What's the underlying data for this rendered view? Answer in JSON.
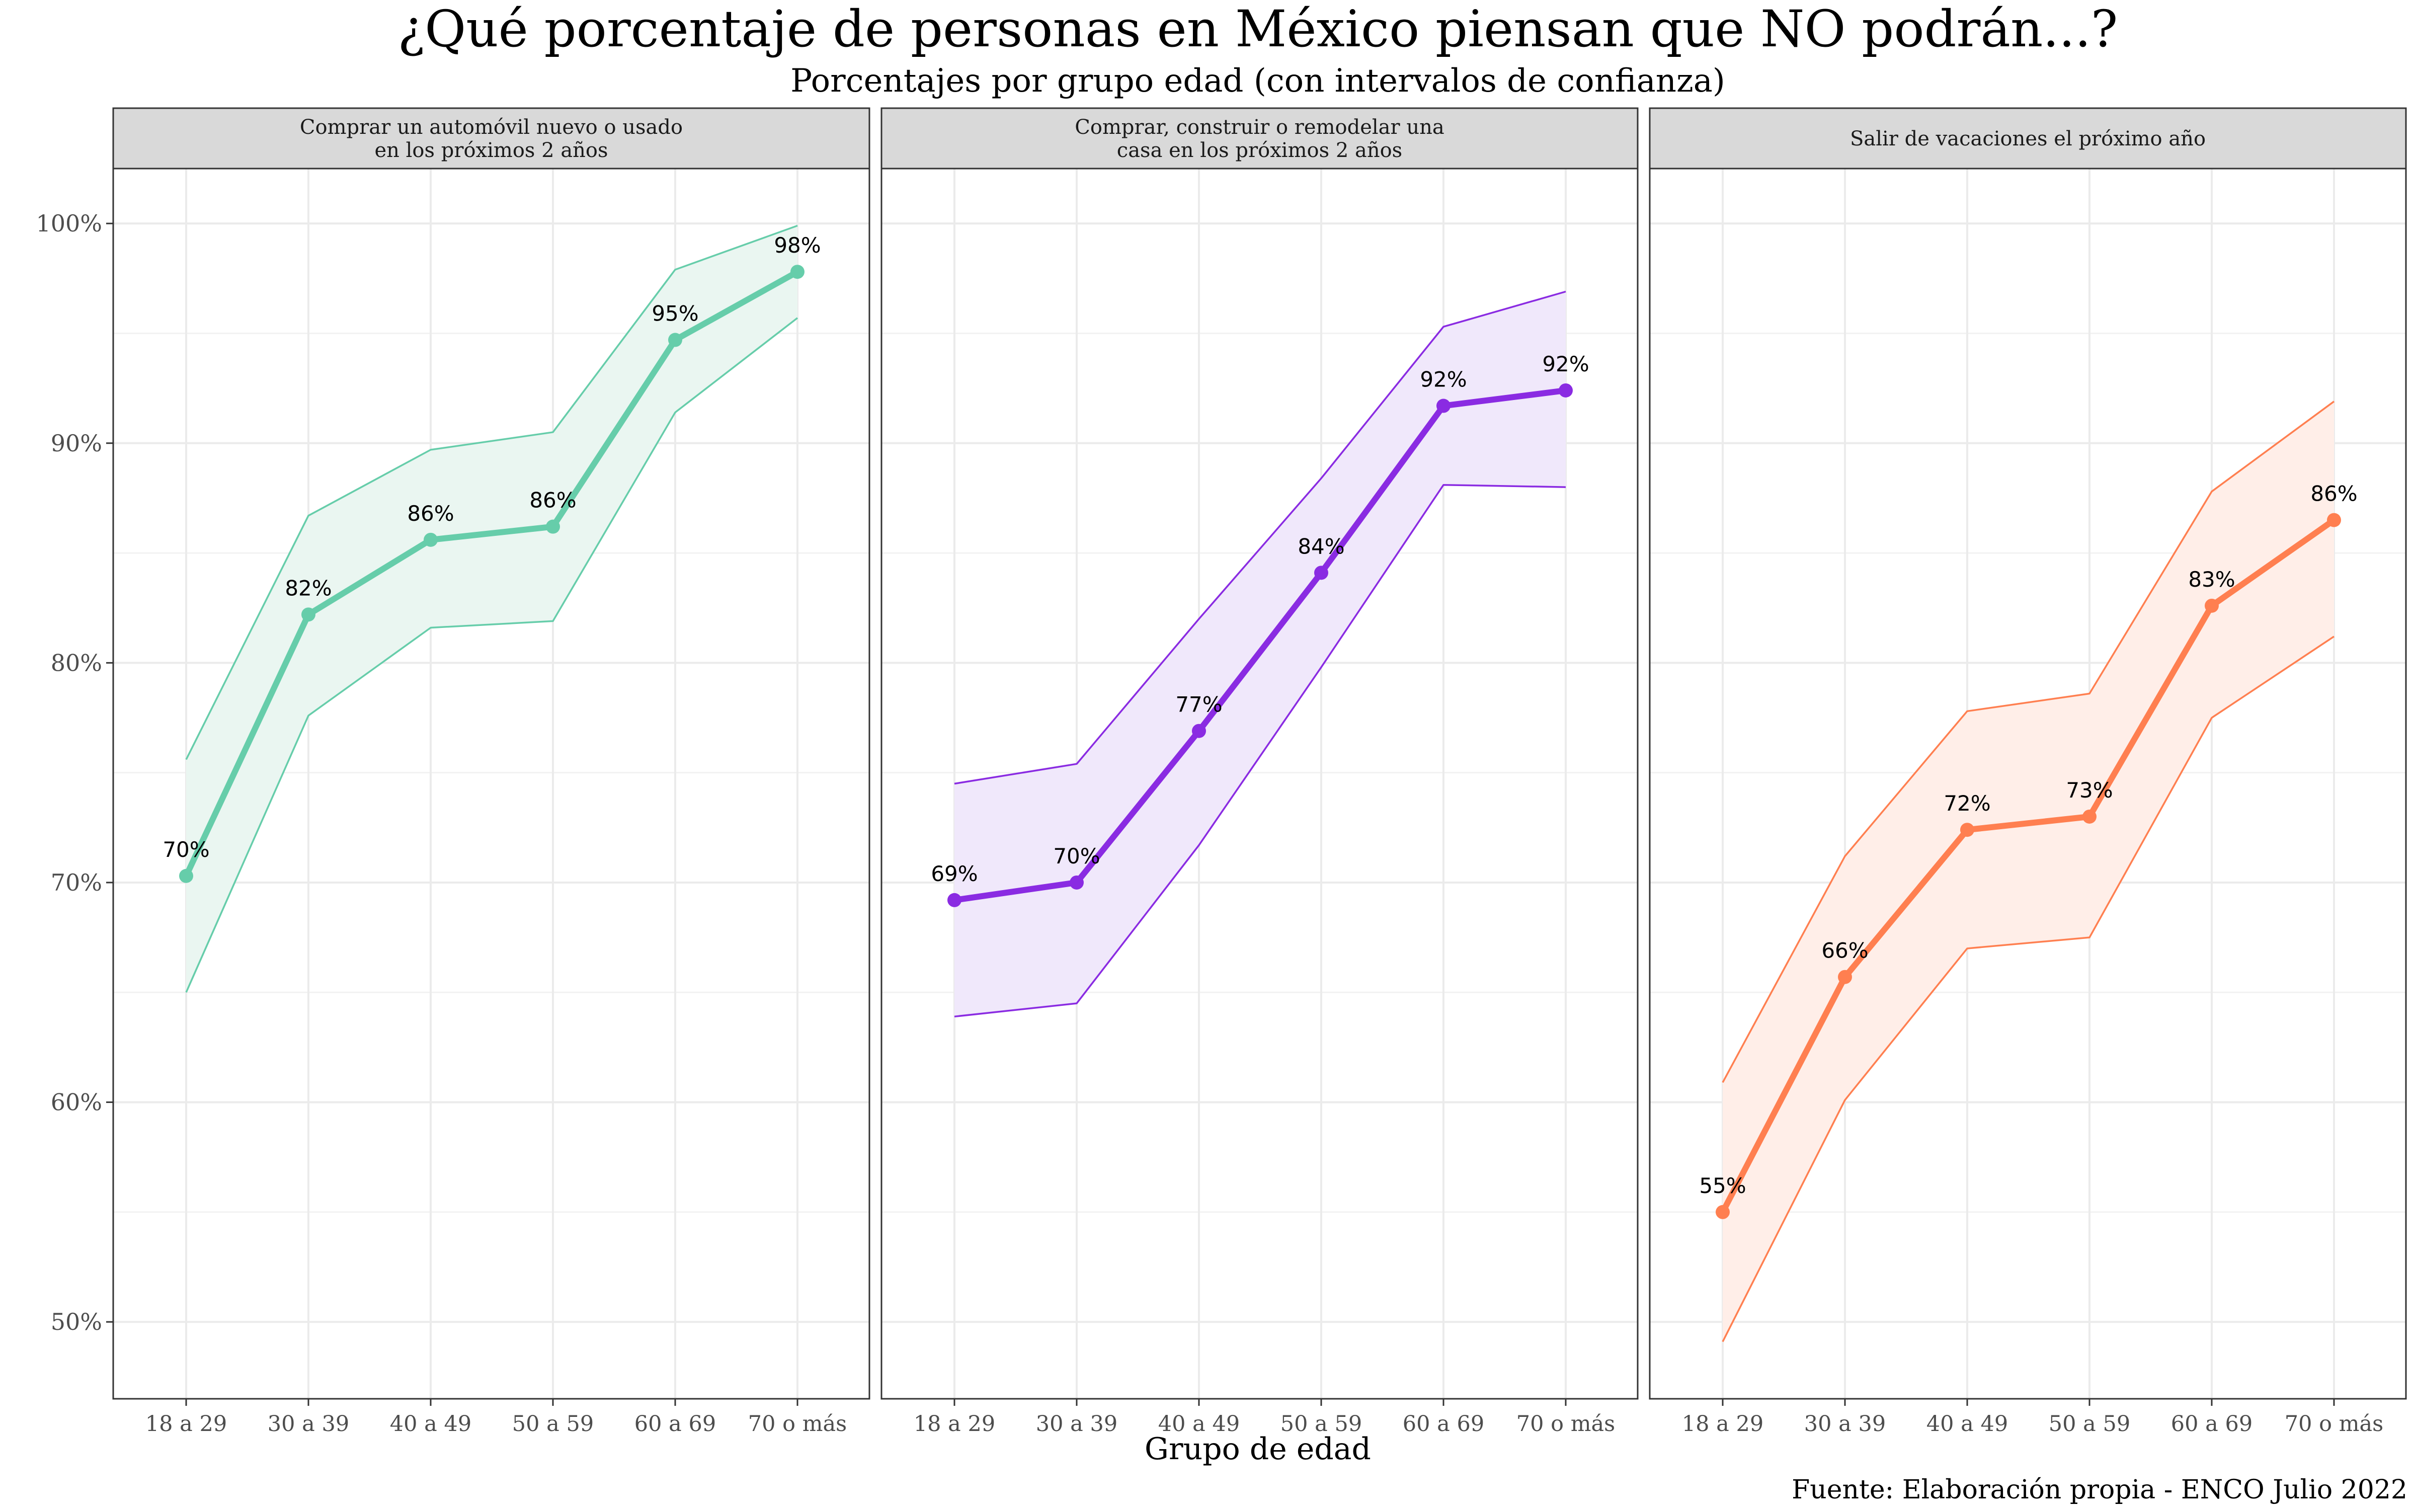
{
  "title": "¿Qué porcentaje de personas en México piensan que NO podrán...?",
  "subtitle": "Porcentajes por grupo edad (con intervalos de confianza)",
  "xlabel": "Grupo de edad",
  "caption": "Fuente: Elaboración propia - ENCO Julio 2022",
  "chart_data": {
    "type": "line",
    "categories": [
      "18 a 29",
      "30 a 39",
      "40 a 49",
      "50 a 59",
      "60 a 69",
      "70 o más"
    ],
    "ylim": [
      46.5,
      102.5
    ],
    "yticks": [
      50,
      60,
      70,
      80,
      90,
      100
    ],
    "ytick_labels": [
      "50%",
      "60%",
      "70%",
      "80%",
      "90%",
      "100%"
    ],
    "grid": true,
    "facets": [
      {
        "strip": [
          "Comprar un automóvil nuevo o usado",
          "en los próximos 2 años"
        ],
        "color": "#66CDAA",
        "fill": "#EAF6F1",
        "values": [
          70.3,
          82.2,
          85.6,
          86.2,
          94.7,
          97.8
        ],
        "labels": [
          "70%",
          "82%",
          "86%",
          "86%",
          "95%",
          "98%"
        ],
        "lower": [
          65.0,
          77.6,
          81.6,
          81.9,
          91.4,
          95.7
        ],
        "upper": [
          75.6,
          86.7,
          89.7,
          90.5,
          97.9,
          99.9
        ]
      },
      {
        "strip": [
          "Comprar, construir o remodelar una",
          "casa en los próximos 2 años"
        ],
        "color": "#8A2BE2",
        "fill": "#F0E8FB",
        "values": [
          69.2,
          70.0,
          76.9,
          84.1,
          91.7,
          92.4
        ],
        "labels": [
          "69%",
          "70%",
          "77%",
          "84%",
          "92%",
          "92%"
        ],
        "lower": [
          63.9,
          64.5,
          71.7,
          79.8,
          88.1,
          88.0
        ],
        "upper": [
          74.5,
          75.4,
          82.0,
          88.4,
          95.3,
          96.9
        ]
      },
      {
        "strip": [
          "Salir de vacaciones el próximo año"
        ],
        "color": "#FF7F50",
        "fill": "#FFEEE8",
        "values": [
          55.0,
          65.7,
          72.4,
          73.0,
          82.6,
          86.5
        ],
        "labels": [
          "55%",
          "66%",
          "72%",
          "73%",
          "83%",
          "86%"
        ],
        "lower": [
          49.1,
          60.1,
          67.0,
          67.5,
          77.5,
          81.2
        ],
        "upper": [
          60.9,
          71.2,
          77.8,
          78.6,
          87.8,
          91.9
        ]
      }
    ]
  }
}
